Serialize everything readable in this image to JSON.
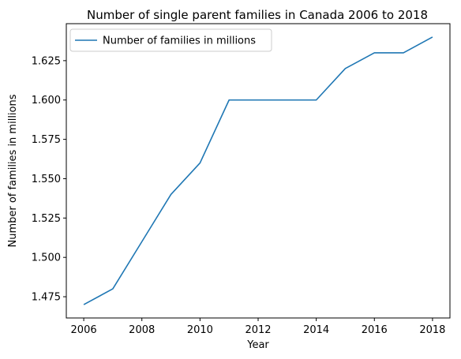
{
  "chart_data": {
    "type": "line",
    "title": "Number of single parent families in Canada 2006 to 2018",
    "xlabel": "Year",
    "ylabel": "Number of families in millions",
    "x": [
      2006,
      2007,
      2008,
      2009,
      2010,
      2011,
      2012,
      2013,
      2014,
      2015,
      2016,
      2017,
      2018
    ],
    "series": [
      {
        "name": "Number of families in millions",
        "color": "#1f77b4",
        "values": [
          1.47,
          1.48,
          1.51,
          1.54,
          1.56,
          1.6,
          1.6,
          1.6,
          1.6,
          1.62,
          1.63,
          1.63,
          1.64
        ]
      }
    ],
    "xlim": [
      2005.4,
      2018.6
    ],
    "ylim": [
      1.4615,
      1.6485
    ],
    "xticks": [
      2006,
      2008,
      2010,
      2012,
      2014,
      2016,
      2018
    ],
    "xtick_labels": [
      "2006",
      "2008",
      "2010",
      "2012",
      "2014",
      "2016",
      "2018"
    ],
    "yticks": [
      1.475,
      1.5,
      1.525,
      1.55,
      1.575,
      1.6,
      1.625
    ],
    "ytick_labels": [
      "1.475",
      "1.500",
      "1.525",
      "1.550",
      "1.575",
      "1.600",
      "1.625"
    ],
    "grid": false,
    "legend_position": "top-left"
  }
}
